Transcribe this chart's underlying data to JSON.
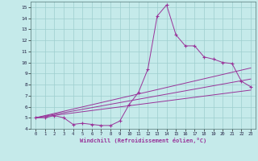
{
  "xlabel": "Windchill (Refroidissement éolien,°C)",
  "bg_color": "#c5eaea",
  "grid_color": "#9ecece",
  "line_color": "#993399",
  "xlim": [
    -0.5,
    23.5
  ],
  "ylim": [
    4,
    15.5
  ],
  "xticks": [
    0,
    1,
    2,
    3,
    4,
    5,
    6,
    7,
    8,
    9,
    10,
    11,
    12,
    13,
    14,
    15,
    16,
    17,
    18,
    19,
    20,
    21,
    22,
    23
  ],
  "yticks": [
    4,
    5,
    6,
    7,
    8,
    9,
    10,
    11,
    12,
    13,
    14,
    15
  ],
  "line1_x": [
    0,
    1,
    2,
    3,
    4,
    5,
    6,
    7,
    8,
    9,
    10,
    11,
    12,
    13,
    14,
    15,
    16,
    17,
    18,
    19,
    20,
    21,
    22,
    23
  ],
  "line1_y": [
    5.0,
    5.0,
    5.2,
    5.0,
    4.4,
    4.5,
    4.4,
    4.3,
    4.3,
    4.7,
    6.2,
    7.3,
    9.4,
    14.2,
    15.2,
    12.5,
    11.5,
    11.5,
    10.5,
    10.3,
    10.0,
    9.9,
    8.3,
    7.8
  ],
  "line2_x": [
    0,
    23
  ],
  "line2_y": [
    5.0,
    9.5
  ],
  "line3_x": [
    0,
    23
  ],
  "line3_y": [
    5.0,
    8.5
  ],
  "line4_x": [
    0,
    23
  ],
  "line4_y": [
    5.0,
    7.5
  ]
}
